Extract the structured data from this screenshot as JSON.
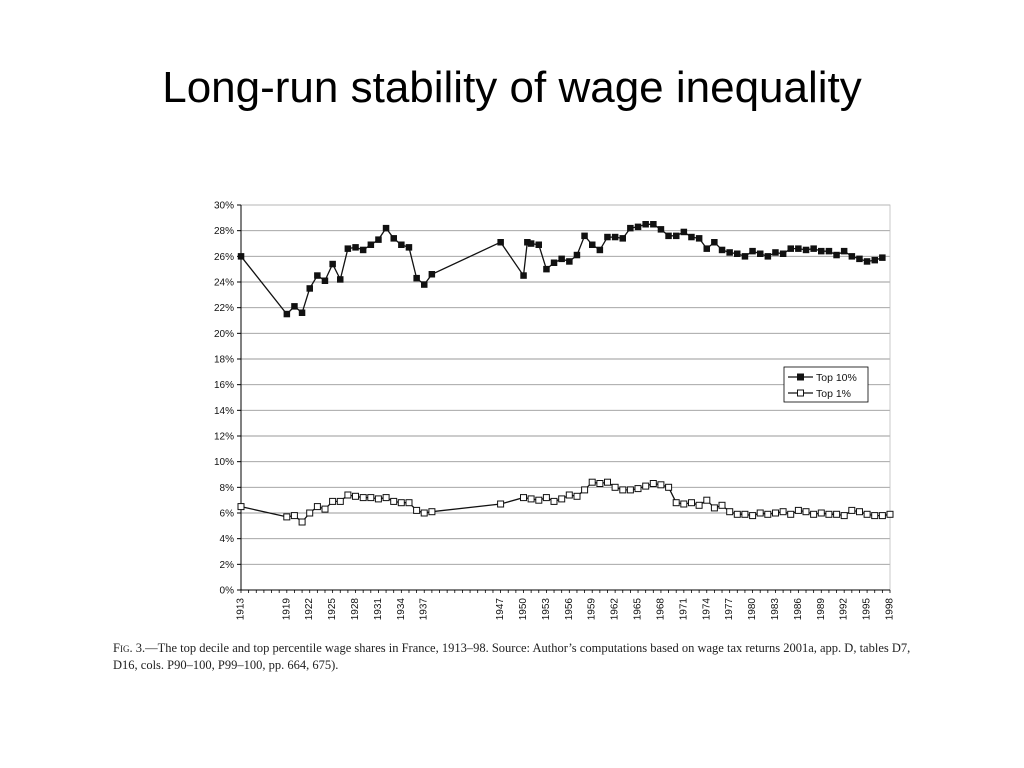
{
  "slide": {
    "title": "Long-run stability of wage inequality"
  },
  "caption": {
    "label": "Fig. 3.",
    "text": "—The top decile and top percentile wage shares in France, 1913–98. Source: Author’s computations based on wage tax returns 2001a, app. D, tables D7, D16, cols. P90–100, P99–100, pp. 664, 675)."
  },
  "colors": {
    "series_line": "#111111",
    "grid": "#9a9a9a",
    "axis": "#000000",
    "plot_border": "#bdbdbd"
  },
  "chart_data": {
    "type": "line",
    "title": "",
    "xlabel": "",
    "ylabel": "",
    "xlim": [
      1913,
      1998
    ],
    "ylim": [
      0,
      30
    ],
    "grid": true,
    "legend_position": "right",
    "y_ticks": [
      0,
      2,
      4,
      6,
      8,
      10,
      12,
      14,
      16,
      18,
      20,
      22,
      24,
      26,
      28,
      30
    ],
    "y_tick_labels": [
      "0%",
      "2%",
      "4%",
      "6%",
      "8%",
      "10%",
      "12%",
      "14%",
      "16%",
      "18%",
      "20%",
      "22%",
      "24%",
      "26%",
      "28%",
      "30%"
    ],
    "x_ticks": [
      1913,
      1919,
      1922,
      1925,
      1928,
      1931,
      1934,
      1937,
      1947,
      1950,
      1953,
      1956,
      1959,
      1962,
      1965,
      1968,
      1971,
      1974,
      1977,
      1980,
      1983,
      1986,
      1989,
      1992,
      1995,
      1998
    ],
    "x_tick_labels": [
      "1913",
      "1919",
      "1922",
      "1925",
      "1928",
      "1931",
      "1934",
      "1937",
      "1947",
      "1950",
      "1953",
      "1956",
      "1959",
      "1962",
      "1965",
      "1968",
      "1971",
      "1974",
      "1977",
      "1980",
      "1983",
      "1986",
      "1989",
      "1992",
      "1995",
      "1998"
    ],
    "series": [
      {
        "name": "Top 10%",
        "marker": "filled-square",
        "points": [
          [
            1913,
            26.0
          ],
          [
            1919,
            21.5
          ],
          [
            1920,
            22.1
          ],
          [
            1921,
            21.6
          ],
          [
            1922,
            23.5
          ],
          [
            1923,
            24.5
          ],
          [
            1924,
            24.1
          ],
          [
            1925,
            25.4
          ],
          [
            1926,
            24.2
          ],
          [
            1927,
            26.6
          ],
          [
            1928,
            26.7
          ],
          [
            1929,
            26.5
          ],
          [
            1930,
            26.9
          ],
          [
            1931,
            27.3
          ],
          [
            1932,
            28.2
          ],
          [
            1933,
            27.4
          ],
          [
            1934,
            26.9
          ],
          [
            1935,
            26.7
          ],
          [
            1936,
            24.3
          ],
          [
            1937,
            23.8
          ],
          [
            1938,
            24.6
          ],
          [
            1947,
            27.1
          ],
          [
            1950,
            24.5
          ],
          [
            1950.5,
            27.1
          ],
          [
            1951,
            27.0
          ],
          [
            1952,
            26.9
          ],
          [
            1953,
            25.0
          ],
          [
            1954,
            25.5
          ],
          [
            1955,
            25.8
          ],
          [
            1956,
            25.6
          ],
          [
            1957,
            26.1
          ],
          [
            1958,
            27.6
          ],
          [
            1959,
            26.9
          ],
          [
            1960,
            26.5
          ],
          [
            1961,
            27.5
          ],
          [
            1962,
            27.5
          ],
          [
            1963,
            27.4
          ],
          [
            1964,
            28.2
          ],
          [
            1965,
            28.3
          ],
          [
            1966,
            28.5
          ],
          [
            1967,
            28.5
          ],
          [
            1968,
            28.1
          ],
          [
            1969,
            27.6
          ],
          [
            1970,
            27.6
          ],
          [
            1971,
            27.9
          ],
          [
            1972,
            27.5
          ],
          [
            1973,
            27.4
          ],
          [
            1974,
            26.6
          ],
          [
            1975,
            27.1
          ],
          [
            1976,
            26.5
          ],
          [
            1977,
            26.3
          ],
          [
            1978,
            26.2
          ],
          [
            1979,
            26.0
          ],
          [
            1980,
            26.4
          ],
          [
            1981,
            26.2
          ],
          [
            1982,
            26.0
          ],
          [
            1983,
            26.3
          ],
          [
            1984,
            26.2
          ],
          [
            1985,
            26.6
          ],
          [
            1986,
            26.6
          ],
          [
            1987,
            26.5
          ],
          [
            1988,
            26.6
          ],
          [
            1989,
            26.4
          ],
          [
            1990,
            26.4
          ],
          [
            1991,
            26.1
          ],
          [
            1992,
            26.4
          ],
          [
            1993,
            26.0
          ],
          [
            1994,
            25.8
          ],
          [
            1995,
            25.6
          ],
          [
            1996,
            25.7
          ],
          [
            1997,
            25.9
          ]
        ]
      },
      {
        "name": "Top 1%",
        "marker": "open-square",
        "points": [
          [
            1913,
            6.5
          ],
          [
            1919,
            5.7
          ],
          [
            1920,
            5.8
          ],
          [
            1921,
            5.3
          ],
          [
            1922,
            6.0
          ],
          [
            1923,
            6.5
          ],
          [
            1924,
            6.3
          ],
          [
            1925,
            6.9
          ],
          [
            1926,
            6.9
          ],
          [
            1927,
            7.4
          ],
          [
            1928,
            7.3
          ],
          [
            1929,
            7.2
          ],
          [
            1930,
            7.2
          ],
          [
            1931,
            7.1
          ],
          [
            1932,
            7.2
          ],
          [
            1933,
            6.9
          ],
          [
            1934,
            6.8
          ],
          [
            1935,
            6.8
          ],
          [
            1936,
            6.2
          ],
          [
            1937,
            6.0
          ],
          [
            1938,
            6.1
          ],
          [
            1947,
            6.7
          ],
          [
            1950,
            7.2
          ],
          [
            1951,
            7.1
          ],
          [
            1952,
            7.0
          ],
          [
            1953,
            7.2
          ],
          [
            1954,
            6.9
          ],
          [
            1955,
            7.1
          ],
          [
            1956,
            7.4
          ],
          [
            1957,
            7.3
          ],
          [
            1958,
            7.8
          ],
          [
            1959,
            8.4
          ],
          [
            1960,
            8.3
          ],
          [
            1961,
            8.4
          ],
          [
            1962,
            8.0
          ],
          [
            1963,
            7.8
          ],
          [
            1964,
            7.8
          ],
          [
            1965,
            7.9
          ],
          [
            1966,
            8.1
          ],
          [
            1967,
            8.3
          ],
          [
            1968,
            8.2
          ],
          [
            1969,
            8.0
          ],
          [
            1970,
            6.8
          ],
          [
            1971,
            6.7
          ],
          [
            1972,
            6.8
          ],
          [
            1973,
            6.6
          ],
          [
            1974,
            7.0
          ],
          [
            1975,
            6.4
          ],
          [
            1976,
            6.6
          ],
          [
            1977,
            6.1
          ],
          [
            1978,
            5.9
          ],
          [
            1979,
            5.9
          ],
          [
            1980,
            5.8
          ],
          [
            1981,
            6.0
          ],
          [
            1982,
            5.9
          ],
          [
            1983,
            6.0
          ],
          [
            1984,
            6.1
          ],
          [
            1985,
            5.9
          ],
          [
            1986,
            6.2
          ],
          [
            1987,
            6.1
          ],
          [
            1988,
            5.9
          ],
          [
            1989,
            6.0
          ],
          [
            1990,
            5.9
          ],
          [
            1991,
            5.9
          ],
          [
            1992,
            5.8
          ],
          [
            1993,
            6.2
          ],
          [
            1994,
            6.1
          ],
          [
            1995,
            5.9
          ],
          [
            1996,
            5.8
          ],
          [
            1997,
            5.8
          ],
          [
            1998,
            5.9
          ]
        ]
      }
    ]
  }
}
